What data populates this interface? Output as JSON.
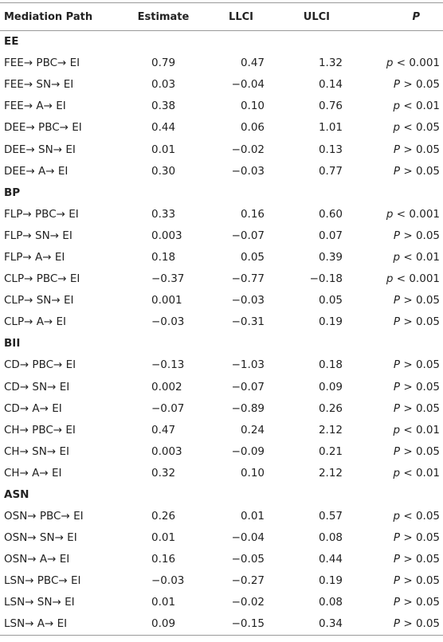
{
  "table": {
    "header": [
      "Mediation Path",
      "Estimate",
      "LLCI",
      "ULCI",
      "P"
    ],
    "sections": [
      {
        "title": "EE",
        "rows": [
          [
            "FEE→ PBC→ EI",
            "0.79",
            "0.47",
            "1.32",
            "p < 0.001"
          ],
          [
            "FEE→ SN→ EI",
            "0.03",
            "−0.04",
            "0.14",
            "P > 0.05"
          ],
          [
            "FEE→ A→ EI",
            "0.38",
            "0.10",
            "0.76",
            "p < 0.01"
          ],
          [
            "DEE→ PBC→ EI",
            "0.44",
            "0.06",
            "1.01",
            "p < 0.05"
          ],
          [
            "DEE→ SN→ EI",
            "0.01",
            "−0.02",
            "0.13",
            "P > 0.05"
          ],
          [
            "DEE→ A→ EI",
            "0.30",
            "−0.03",
            "0.77",
            "P > 0.05"
          ]
        ]
      },
      {
        "title": "BP",
        "rows": [
          [
            "FLP→ PBC→ EI",
            "0.33",
            "0.16",
            "0.60",
            "p < 0.001"
          ],
          [
            "FLP→ SN→ EI",
            "0.003",
            "−0.07",
            "0.07",
            "P > 0.05"
          ],
          [
            "FLP→ A→ EI",
            "0.18",
            "0.05",
            "0.39",
            "p < 0.01"
          ],
          [
            "CLP→ PBC→ EI",
            "−0.37",
            "−0.77",
            "−0.18",
            "p < 0.001"
          ],
          [
            "CLP→ SN→ EI",
            "0.001",
            "−0.03",
            "0.05",
            "P > 0.05"
          ],
          [
            "CLP→ A→ EI",
            "−0.03",
            "−0.31",
            "0.19",
            "P > 0.05"
          ]
        ]
      },
      {
        "title": "BII",
        "rows": [
          [
            "CD→ PBC→ EI",
            "−0.13",
            "−1.03",
            "0.18",
            "P > 0.05"
          ],
          [
            "CD→ SN→ EI",
            "0.002",
            "−0.07",
            "0.09",
            "P > 0.05"
          ],
          [
            "CD→ A→ EI",
            "−0.07",
            "−0.89",
            "0.26",
            "P > 0.05"
          ],
          [
            "CH→ PBC→ EI",
            "0.47",
            "0.24",
            "2.12",
            "p < 0.01"
          ],
          [
            "CH→ SN→ EI",
            "0.003",
            "−0.09",
            "0.21",
            "P > 0.05"
          ],
          [
            "CH→ A→ EI",
            "0.32",
            "0.10",
            "2.12",
            "p < 0.01"
          ]
        ]
      },
      {
        "title": "ASN",
        "rows": [
          [
            "OSN→ PBC→ EI",
            "0.26",
            "0.01",
            "0.57",
            "p < 0.05"
          ],
          [
            "OSN→ SN→ EI",
            "0.01",
            "−0.04",
            "0.08",
            "P > 0.05"
          ],
          [
            "OSN→ A→ EI",
            "0.16",
            "−0.05",
            "0.44",
            "P > 0.05"
          ],
          [
            "LSN→ PBC→ EI",
            "−0.03",
            "−0.27",
            "0.19",
            "P > 0.05"
          ],
          [
            "LSN→ SN→ EI",
            "0.01",
            "−0.02",
            "0.08",
            "P > 0.05"
          ],
          [
            "LSN→ A→ EI",
            "0.09",
            "−0.15",
            "0.34",
            "P > 0.05"
          ]
        ]
      }
    ]
  }
}
